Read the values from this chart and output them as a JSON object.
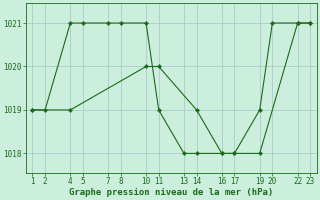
{
  "title": "Graphe pression niveau de la mer (hPa)",
  "background_color": "#cceedd",
  "grid_color": "#aacccc",
  "line_color": "#1a6b1a",
  "marker_color": "#1a6b1a",
  "xlim": [
    0.5,
    23.5
  ],
  "ylim": [
    1017.55,
    1021.45
  ],
  "xticks": [
    1,
    2,
    4,
    5,
    7,
    8,
    10,
    11,
    13,
    14,
    16,
    17,
    19,
    20,
    22,
    23
  ],
  "yticks": [
    1018,
    1019,
    1020,
    1021
  ],
  "line1_x": [
    1,
    2,
    4,
    5,
    7,
    8,
    10,
    11,
    13,
    14,
    16,
    17,
    19,
    20,
    22,
    23
  ],
  "line1_y": [
    1019,
    1019,
    1021,
    1021,
    1021,
    1021,
    1021,
    1019,
    1018,
    1018,
    1018,
    1018,
    1019,
    1021,
    1021,
    1021
  ],
  "line2_x": [
    1,
    4,
    10,
    11,
    14,
    16,
    17,
    19,
    22,
    23
  ],
  "line2_y": [
    1019,
    1019,
    1020,
    1020,
    1019,
    1018,
    1018,
    1018,
    1021,
    1021
  ],
  "figsize": [
    3.2,
    2.0
  ],
  "dpi": 100,
  "tick_fontsize": 5.5,
  "xlabel_fontsize": 6.5
}
